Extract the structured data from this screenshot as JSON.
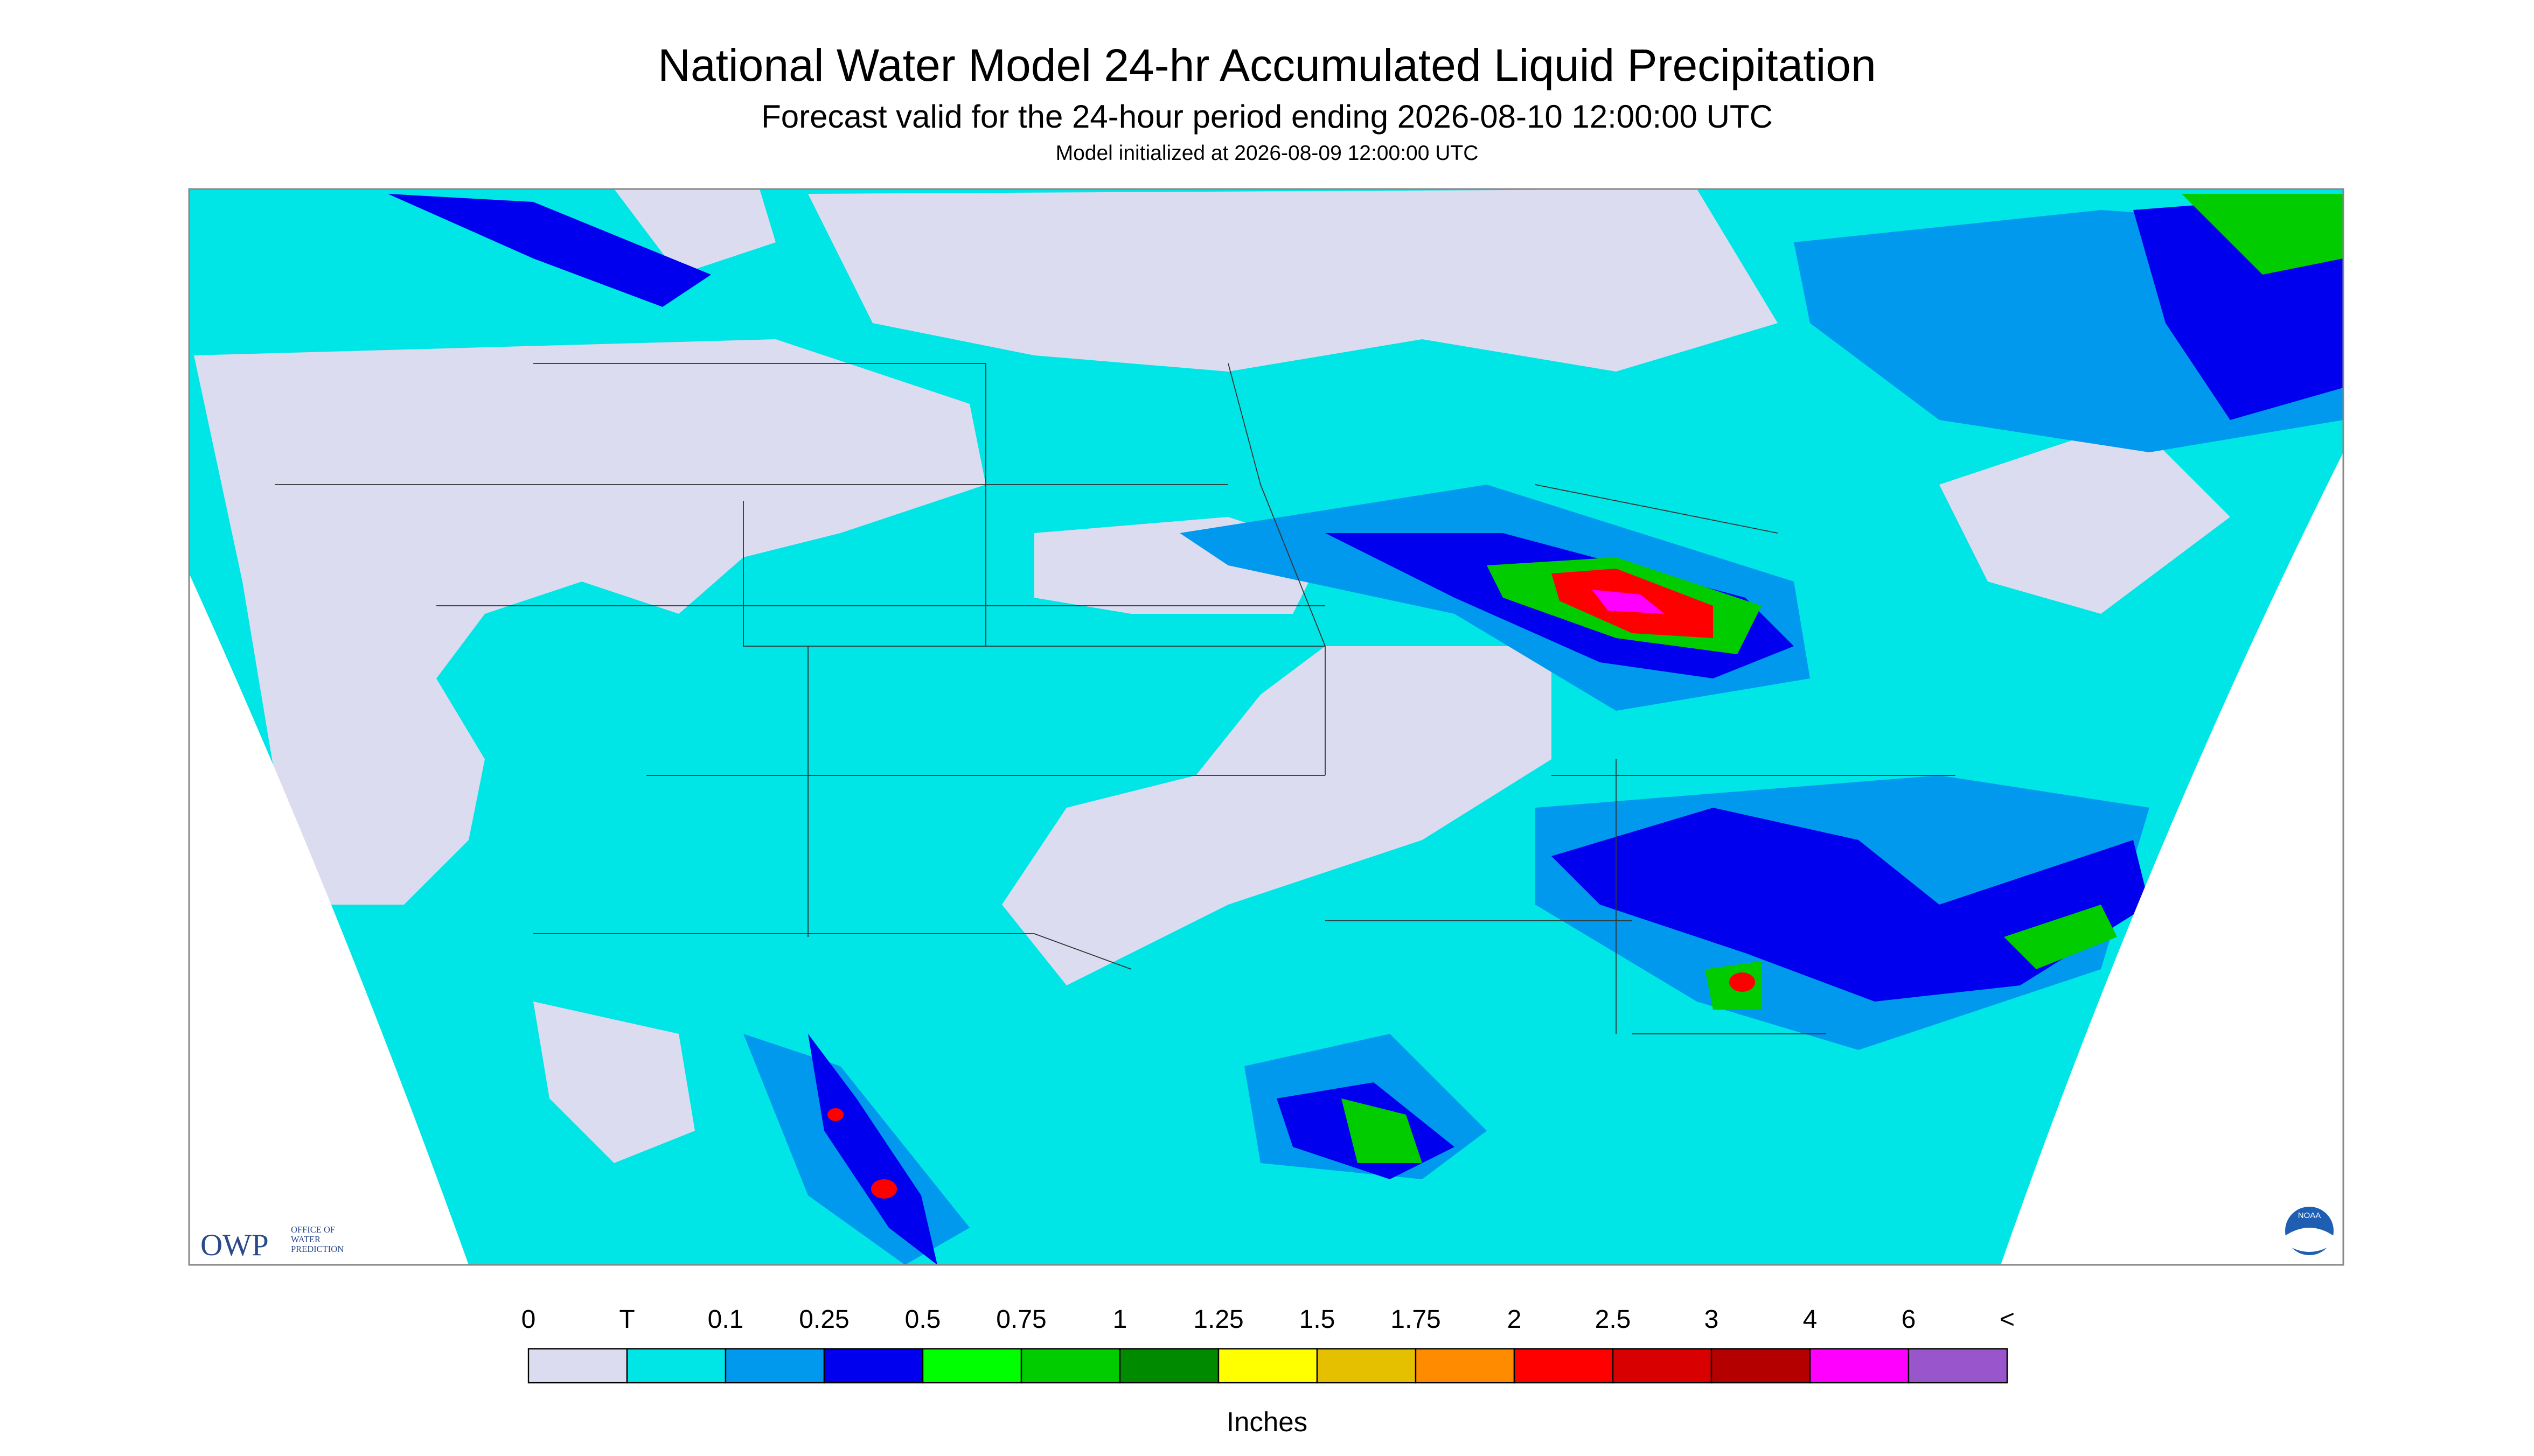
{
  "header": {
    "title": "National Water Model 24-hr Accumulated Liquid Precipitation",
    "subtitle": "Forecast valid for the 24-hour period ending 2026-08-10 12:00:00 UTC",
    "note": "Model initialized at 2026-08-09 12:00:00 UTC"
  },
  "logos": {
    "owp": "OWP",
    "owp_lines": [
      "OFFICE OF",
      "WATER",
      "PREDICTION"
    ],
    "noaa": "NOAA"
  },
  "legend": {
    "labels": [
      "0",
      "T",
      "0.1",
      "0.25",
      "0.5",
      "0.75",
      "1",
      "1.25",
      "1.5",
      "1.75",
      "2",
      "2.5",
      "3",
      "4",
      "6",
      "<"
    ],
    "colors": [
      "#dcdcf0",
      "#00e5e5",
      "#0099ee",
      "#0000ee",
      "#00ff00",
      "#00cc00",
      "#008a00",
      "#ffff00",
      "#e5c000",
      "#ff8c00",
      "#ff0000",
      "#d80000",
      "#b50000",
      "#ff00ff",
      "#9955cc"
    ],
    "unit": "Inches"
  }
}
